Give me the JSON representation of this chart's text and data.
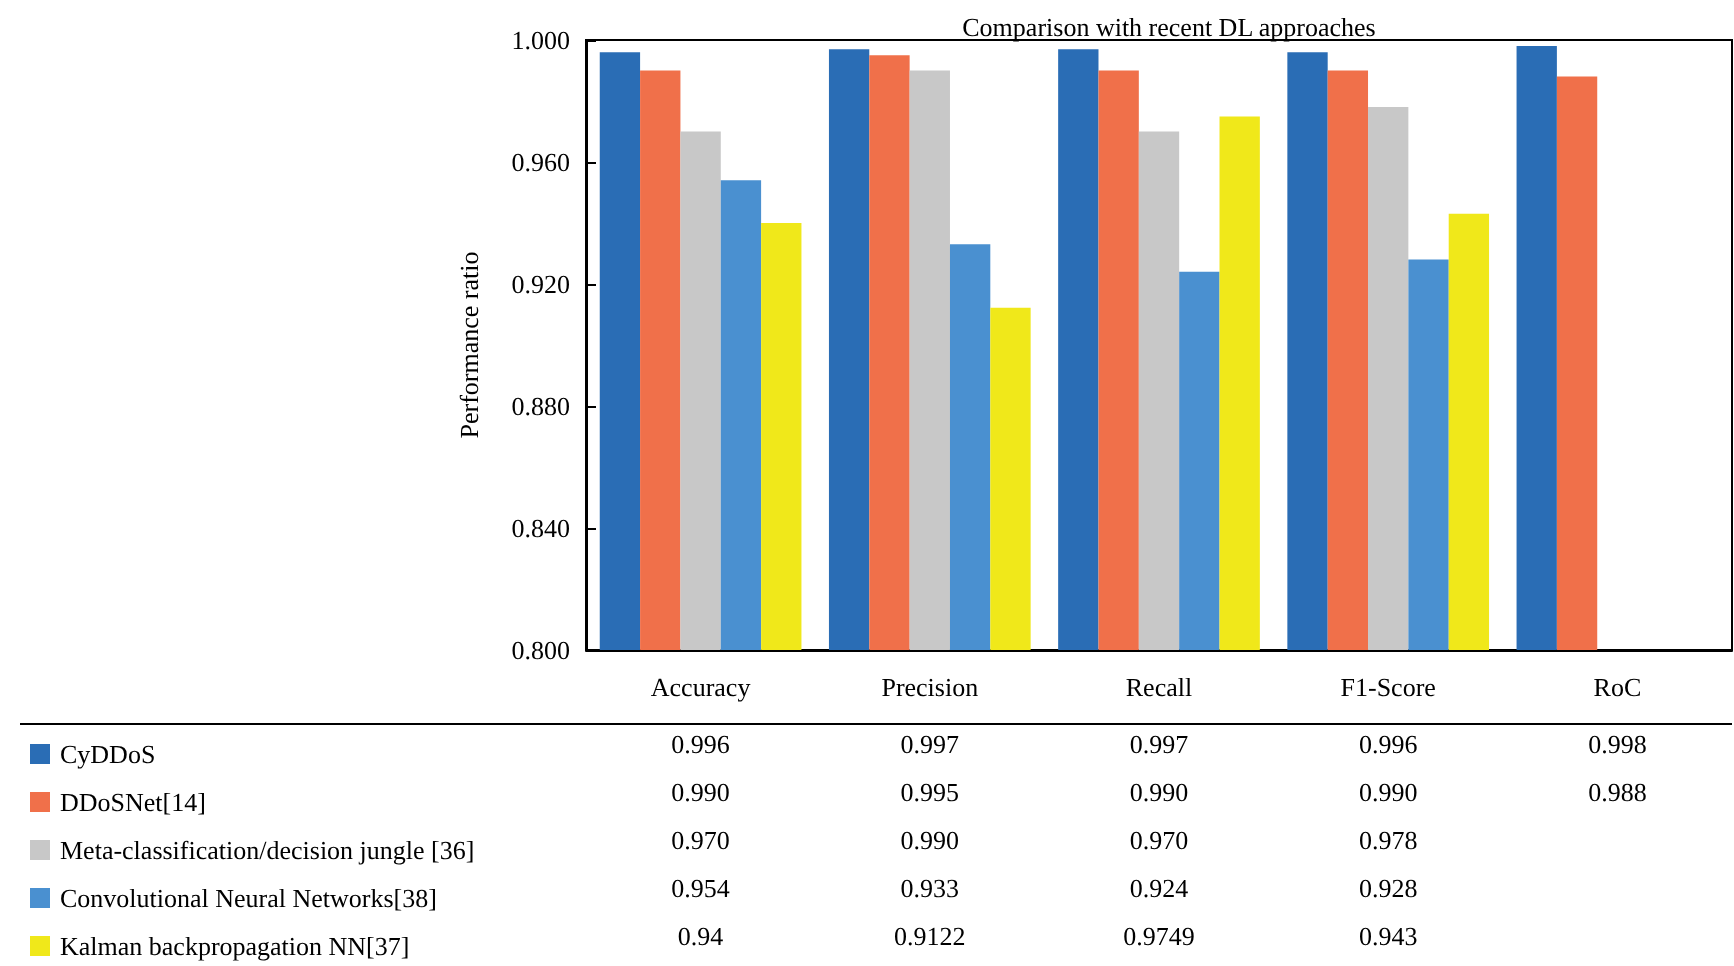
{
  "chart_data": {
    "type": "bar",
    "title": "Comparison with recent DL approaches",
    "ylabel": "Performance ratio",
    "categories": [
      "Accuracy",
      "Precision",
      "Recall",
      "F1-Score",
      "RoC"
    ],
    "series": [
      {
        "name": "CyDDoS",
        "color": "#2a6db5",
        "values": [
          0.996,
          0.997,
          0.997,
          0.996,
          0.998
        ],
        "value_labels": [
          "0.996",
          "0.997",
          "0.997",
          "0.996",
          "0.998"
        ]
      },
      {
        "name": "DDoSNet[14]",
        "color": "#f0704a",
        "values": [
          0.99,
          0.995,
          0.99,
          0.99,
          0.988
        ],
        "value_labels": [
          "0.990",
          "0.995",
          "0.990",
          "0.990",
          "0.988"
        ]
      },
      {
        "name": "Meta-classification/decision jungle [36]",
        "color": "#c8c8c8",
        "values": [
          0.97,
          0.99,
          0.97,
          0.978,
          null
        ],
        "value_labels": [
          "0.970",
          "0.990",
          "0.970",
          "0.978",
          null
        ]
      },
      {
        "name": "Convolutional Neural Networks[38]",
        "color": "#4a90d0",
        "values": [
          0.954,
          0.933,
          0.924,
          0.928,
          null
        ],
        "value_labels": [
          "0.954",
          "0.933",
          "0.924",
          "0.928",
          null
        ]
      },
      {
        "name": "Kalman backpropagation NN[37]",
        "color": "#f0e81a",
        "values": [
          0.94,
          0.9122,
          0.9749,
          0.943,
          null
        ],
        "value_labels": [
          "0.94",
          "0.9122",
          "0.9749",
          "0.943",
          null
        ]
      }
    ],
    "ylim": [
      0.8,
      1.0
    ],
    "yticks": [
      {
        "value": 0.8,
        "label": "0.800"
      },
      {
        "value": 0.84,
        "label": "0.840"
      },
      {
        "value": 0.88,
        "label": "0.880"
      },
      {
        "value": 0.92,
        "label": "0.920"
      },
      {
        "value": 0.96,
        "label": "0.960"
      },
      {
        "value": 1.0,
        "label": "1.000"
      }
    ],
    "grid": false,
    "legend": "bottom"
  }
}
